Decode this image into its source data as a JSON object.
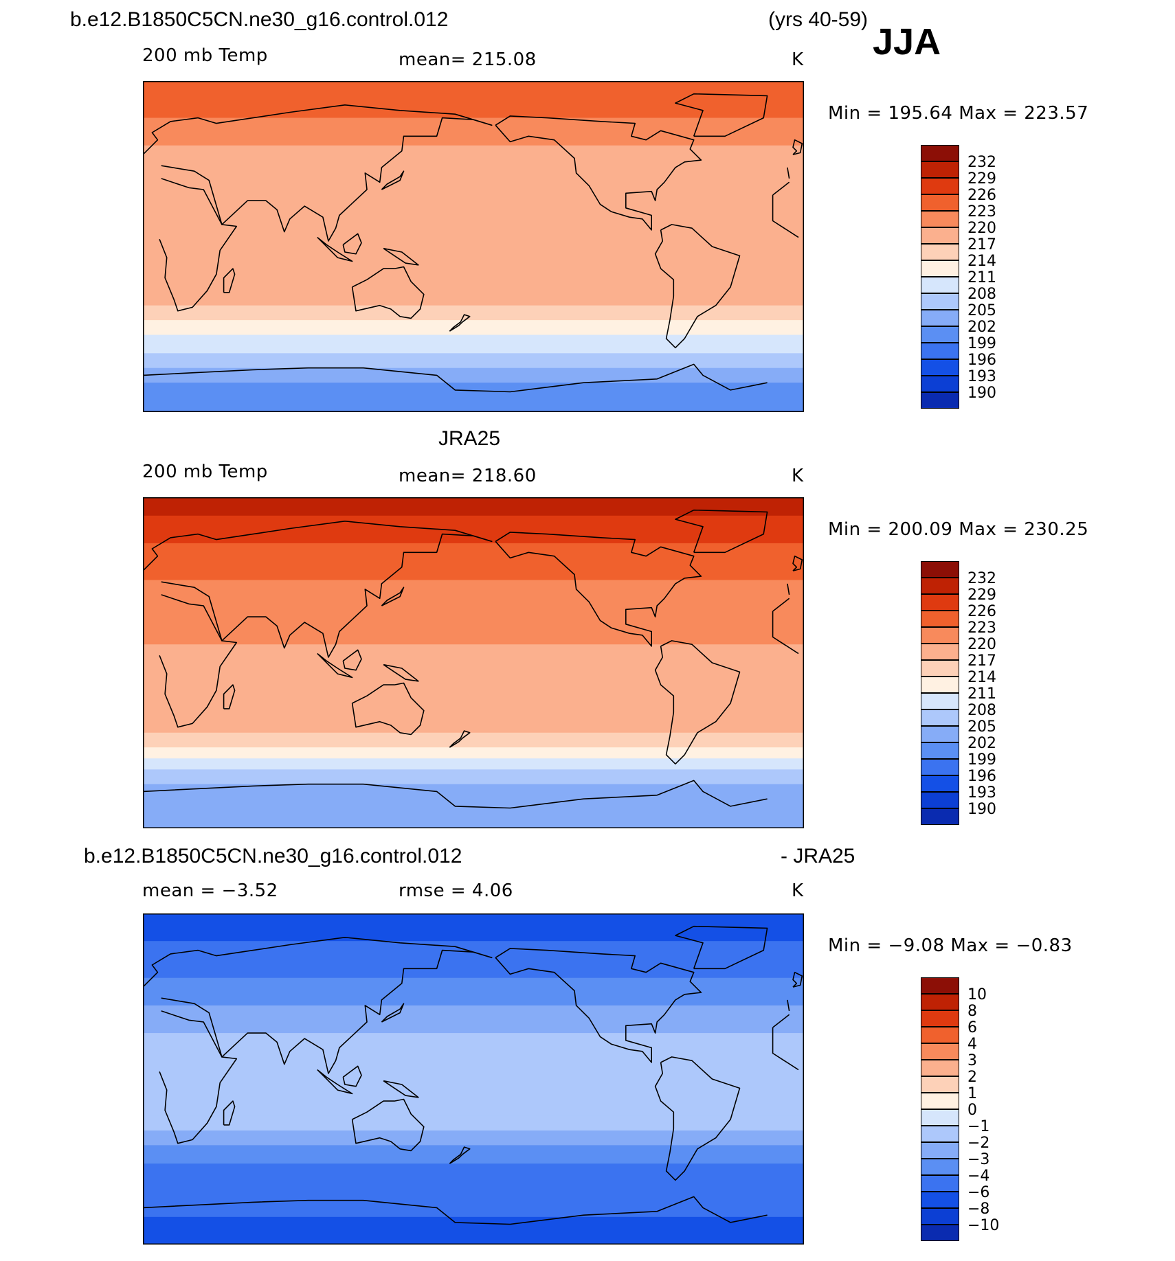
{
  "header": {
    "case_title": "b.e12.B1850C5CN.ne30_g16.control.012",
    "years": "(yrs 40-59)",
    "season": "JJA"
  },
  "palettes": {
    "abs": [
      "#0b0e87",
      "#0a2bb0",
      "#0c3fd4",
      "#1450e6",
      "#3b73f0",
      "#5b8ff3",
      "#86acf7",
      "#adc8fb",
      "#d6e6fc",
      "#fff1e2",
      "#fdd1b8",
      "#fbb08e",
      "#f88a5c",
      "#f0612d",
      "#df3a10",
      "#bf2204",
      "#8c0f06"
    ],
    "diff": [
      "#0b0e87",
      "#0a2bb0",
      "#0c3fd4",
      "#1450e6",
      "#3b73f0",
      "#5b8ff3",
      "#86acf7",
      "#adc8fb",
      "#d6e6fc",
      "#fff1e2",
      "#fdd1b8",
      "#fbb08e",
      "#f88a5c",
      "#f0612d",
      "#df3a10",
      "#bf2204",
      "#8c0f06"
    ]
  },
  "panels": [
    {
      "id": "model",
      "title": "",
      "left_label": "200 mb Temp",
      "center_label": "mean=  215.08",
      "units": "K",
      "minmax": "Min  =  195.64  Max  =  223.57",
      "colorbar_labels": [
        "232",
        "229",
        "226",
        "223",
        "220",
        "217",
        "214",
        "211",
        "208",
        "205",
        "202",
        "199",
        "196",
        "193",
        "190"
      ],
      "bands": [
        {
          "lat": 90,
          "level": 13
        },
        {
          "lat": 70,
          "level": 12
        },
        {
          "lat": 55,
          "level": 11
        },
        {
          "lat": 35,
          "level": 11
        },
        {
          "lat": 20,
          "level": 11
        },
        {
          "lat": 0,
          "level": 11
        },
        {
          "lat": -20,
          "level": 11
        },
        {
          "lat": -32,
          "level": 10
        },
        {
          "lat": -40,
          "level": 9
        },
        {
          "lat": -48,
          "level": 8
        },
        {
          "lat": -58,
          "level": 7
        },
        {
          "lat": -66,
          "level": 6
        },
        {
          "lat": -74,
          "level": 5
        },
        {
          "lat": -90,
          "level": 4
        }
      ]
    },
    {
      "id": "obs",
      "title": "JRA25",
      "left_label": "200 mb Temp",
      "center_label": "mean=  218.60",
      "units": "K",
      "minmax": "Min  =  200.09  Max  =  230.25",
      "colorbar_labels": [
        "232",
        "229",
        "226",
        "223",
        "220",
        "217",
        "214",
        "211",
        "208",
        "205",
        "202",
        "199",
        "196",
        "193",
        "190"
      ],
      "bands": [
        {
          "lat": 90,
          "level": 15
        },
        {
          "lat": 80,
          "level": 14
        },
        {
          "lat": 65,
          "level": 13
        },
        {
          "lat": 45,
          "level": 12
        },
        {
          "lat": 30,
          "level": 12
        },
        {
          "lat": 10,
          "level": 11
        },
        {
          "lat": -20,
          "level": 11
        },
        {
          "lat": -38,
          "level": 10
        },
        {
          "lat": -46,
          "level": 9
        },
        {
          "lat": -52,
          "level": 8
        },
        {
          "lat": -58,
          "level": 7
        },
        {
          "lat": -66,
          "level": 6
        },
        {
          "lat": -90,
          "level": 5
        }
      ]
    },
    {
      "id": "diff",
      "title": "b.e12.B1850C5CN.ne30_g16.control.012",
      "title_right": "- JRA25",
      "left_label": "mean =   −3.52",
      "center_label": "rmse =    4.06",
      "units": "K",
      "minmax": "Min  =   −9.08  Max  =   −0.83",
      "colorbar_labels": [
        "10",
        "8",
        "6",
        "4",
        "3",
        "2",
        "1",
        "0",
        "−1",
        "−2",
        "−3",
        "−4",
        "−6",
        "−8",
        "−10"
      ],
      "bands": [
        {
          "lat": 90,
          "level": 3
        },
        {
          "lat": 75,
          "level": 4
        },
        {
          "lat": 55,
          "level": 5
        },
        {
          "lat": 40,
          "level": 6
        },
        {
          "lat": 25,
          "level": 7
        },
        {
          "lat": 5,
          "level": 7
        },
        {
          "lat": -20,
          "level": 7
        },
        {
          "lat": -28,
          "level": 6
        },
        {
          "lat": -36,
          "level": 5
        },
        {
          "lat": -46,
          "level": 4
        },
        {
          "lat": -75,
          "level": 3
        },
        {
          "lat": -90,
          "level": 4
        }
      ]
    }
  ]
}
